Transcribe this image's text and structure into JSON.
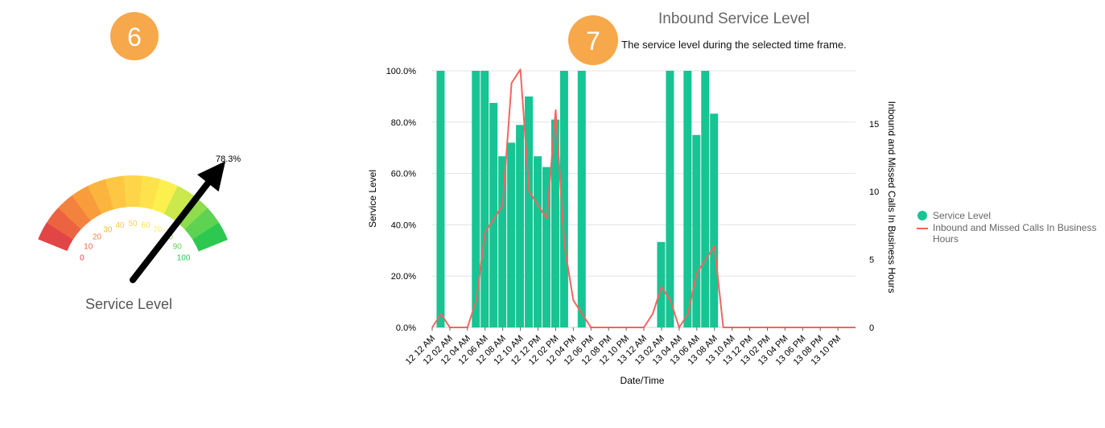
{
  "badges": [
    {
      "label": "6",
      "color": "#F7A84A"
    },
    {
      "label": "7",
      "color": "#F7A84A"
    }
  ],
  "gauge": {
    "title": "Service Level",
    "value": 78.3,
    "value_label": "78.3%",
    "min": 0,
    "max": 100,
    "tick_labels": [
      "0",
      "10",
      "20",
      "30",
      "40",
      "50",
      "60",
      "70",
      "80",
      "90",
      "100"
    ],
    "segment_colors": [
      "#E24545",
      "#EC6342",
      "#F4823F",
      "#F99D3C",
      "#FBB53F",
      "#FDC744",
      "#FED548",
      "#FDE24B",
      "#FCF04E",
      "#CBE84C",
      "#8FDC4D",
      "#5ED252",
      "#2CC84F"
    ]
  },
  "chart_data": {
    "type": "bar+line",
    "title": "Inbound Service Level",
    "subtitle": "The service level during the selected time frame.",
    "xlabel": "Date/Time",
    "ylabel": "Service Level",
    "y2label": "Inbound and Missed Calls In Business Hours",
    "ylim": [
      0,
      100
    ],
    "y2lim": [
      0,
      18.9
    ],
    "yticks": [
      "0.0%",
      "20.0%",
      "40.0%",
      "60.0%",
      "80.0%",
      "100.0%"
    ],
    "y2ticks": [
      "0",
      "5",
      "10",
      "15"
    ],
    "grid": true,
    "legend_position": "right",
    "colors": {
      "bar": "#17C494",
      "line": "#F4645F"
    },
    "x_tick_labels": [
      "12 12 AM",
      "12 02 AM",
      "12 04 AM",
      "12 06 AM",
      "12 08 AM",
      "12 10 AM",
      "12 12 PM",
      "12 02 PM",
      "12 04 PM",
      "12 06 PM",
      "12 08 PM",
      "12 10 PM",
      "13 12 AM",
      "13 02 AM",
      "13 04 AM",
      "13 06 AM",
      "13 08 AM",
      "13 10 AM",
      "13 12 PM",
      "13 02 PM",
      "13 04 PM",
      "13 06 PM",
      "13 08 PM",
      "13 10 PM"
    ],
    "series": [
      {
        "name": "Service Level",
        "type": "bar",
        "values": [
          null,
          100,
          null,
          null,
          null,
          100,
          100,
          87.5,
          66.7,
          72,
          78.9,
          90,
          66.7,
          62.5,
          81,
          100,
          null,
          100,
          null,
          null,
          null,
          null,
          null,
          null,
          null,
          null,
          33.3,
          100,
          null,
          100,
          75,
          100,
          83.3,
          null,
          null,
          null,
          null,
          null,
          null,
          null,
          null,
          null,
          null,
          null,
          null,
          null,
          null,
          null
        ]
      },
      {
        "name": "Inbound and Missed Calls In Business Hours",
        "type": "line",
        "values": [
          0,
          1,
          0,
          0,
          0,
          2,
          7,
          8,
          9,
          18,
          19,
          10,
          9,
          8,
          16,
          6,
          2,
          1,
          0,
          0,
          0,
          0,
          0,
          0,
          0,
          1,
          3,
          2,
          0,
          1,
          4,
          5,
          6,
          0,
          0,
          0,
          0,
          0,
          0,
          0,
          0,
          0,
          0,
          0,
          0,
          0,
          0,
          0
        ]
      }
    ]
  }
}
